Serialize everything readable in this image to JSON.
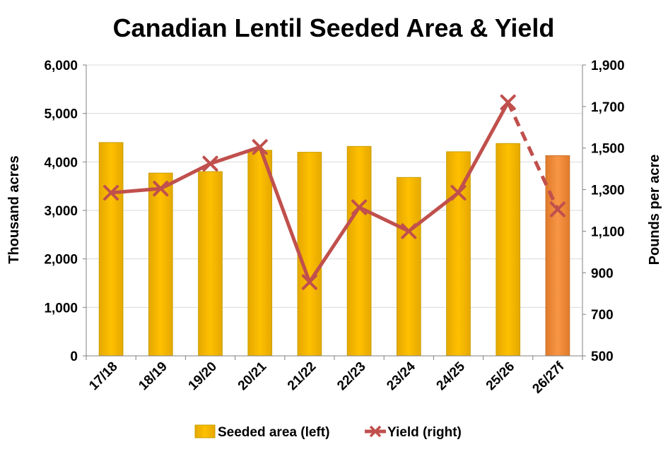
{
  "chart_data": {
    "type": "bar+line",
    "title": "Canadian Lentil Seeded Area & Yield",
    "categories": [
      "17/18",
      "18/19",
      "19/20",
      "20/21",
      "21/22",
      "22/23",
      "23/24",
      "24/25",
      "25/26",
      "26/27f"
    ],
    "series": [
      {
        "name": "Seeded area (left)",
        "type": "bar",
        "axis": "left",
        "values": [
          4400,
          3770,
          3800,
          4240,
          4200,
          4320,
          3680,
          4210,
          4380,
          4130
        ],
        "forecast_index": 9
      },
      {
        "name": "Yield (right)",
        "type": "line",
        "axis": "right",
        "values": [
          1285,
          1305,
          1425,
          1505,
          855,
          1215,
          1100,
          1285,
          1720,
          1205
        ],
        "forecast_from_index": 8
      }
    ],
    "ylabel_left": "Thousand acres",
    "ylabel_right": "Pounds per acre",
    "ylim_left": [
      0,
      6000
    ],
    "ylim_right": [
      500,
      1900
    ],
    "yticks_left": [
      "6,000",
      "5,000",
      "4,000",
      "3,000",
      "2,000",
      "1,000",
      "0"
    ],
    "yticks_right": [
      "1,900",
      "1,700",
      "1,500",
      "1,300",
      "1,100",
      "900",
      "700",
      "500"
    ],
    "legend": [
      "Seeded area (left)",
      "Yield (right)"
    ],
    "legend_position": "bottom",
    "colors": {
      "bar": "#FFC000",
      "bar_edge": "#C9A000",
      "bar_forecast": "#F79646",
      "line": "#C0504D",
      "axis": "#808080"
    }
  }
}
